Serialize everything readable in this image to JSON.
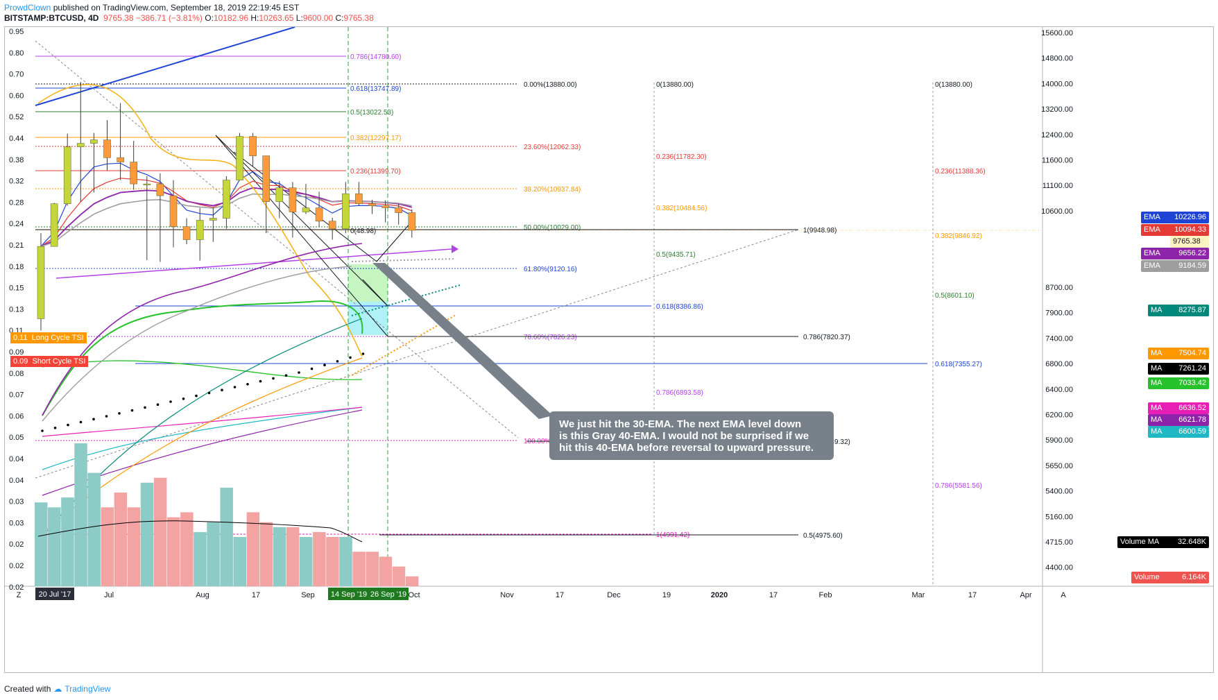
{
  "header": {
    "author": "ProwdClown",
    "published": "published on TradingView.com, September 18, 2019 22:19:45 EST"
  },
  "ohlc": {
    "symbol": "BITSTAMP:BTCUSD, 4D",
    "last": "9765.38",
    "change": "−386.71 (−3.81%)",
    "o_label": "O:",
    "o": "10182.96",
    "h_label": "H:",
    "h": "10263.65",
    "l_label": "L:",
    "l": "9600.00",
    "c_label": "C:",
    "c": "9765.38"
  },
  "footer": {
    "created": "Created with",
    "brand": "TradingView"
  },
  "callout": "We just hit the 30-EMA.  The next EMA level down\nis this Gray 40-EMA.  I would not be surprised if we\nhit this 40-EMA before reversal to upward pressure.",
  "colors": {
    "up": "#c5d63b",
    "up_strong": "#7cb342",
    "down": "#ff9a3c",
    "ema_blue": "#1e44d6",
    "ema_red": "#e53935",
    "ema_purple": "#8e24aa",
    "ema_gray": "#9e9e9e",
    "ma_teal": "#00897b",
    "ma_orange": "#ff9800",
    "ma_green": "#27c22b",
    "ma_magenta": "#e91eb7",
    "ma_cyan": "#1fb8c4",
    "vol_up": "#8ccbc6",
    "vol_down": "#f4a3a3"
  },
  "badges": {
    "ema1": {
      "label": "EMA",
      "value": "10226.96"
    },
    "ema2": {
      "label": "EMA",
      "value": "10094.33"
    },
    "price": {
      "value": "9765.38"
    },
    "ema3": {
      "label": "EMA",
      "value": "9656.22"
    },
    "ema4": {
      "label": "EMA",
      "value": "9184.59"
    },
    "ma1": {
      "label": "MA",
      "value": "8275.87"
    },
    "ma2": {
      "label": "MA",
      "value": "7504.74"
    },
    "ma3": {
      "label": "MA",
      "value": "7261.24"
    },
    "ma4": {
      "label": "MA",
      "value": "7033.42"
    },
    "ma5": {
      "label": "MA",
      "value": "6636.52"
    },
    "ma6": {
      "label": "MA",
      "value": "6621.78"
    },
    "ma7": {
      "label": "MA",
      "value": "6600.59"
    },
    "volma": {
      "label": "Volume MA",
      "value": "32.648K"
    },
    "vol": {
      "label": "Volume",
      "value": "6.164K"
    }
  },
  "tsi": {
    "long_value": "0.11",
    "long_label": "Long Cycle TSI",
    "short_value": "0.09",
    "short_label": "Short Cycle TSI"
  },
  "x_axis": {
    "z_label": "Z",
    "a_label": "A",
    "labels": [
      "Jul",
      "Aug",
      "17",
      "Sep",
      "Oct",
      "Nov",
      "17",
      "Dec",
      "19",
      "2020",
      "17",
      "Feb",
      "Mar",
      "17",
      "Apr"
    ],
    "highlight_start": "20 Jul '17",
    "highlight_a": "14 Sep '19",
    "highlight_b": "26 Sep '19"
  },
  "chart_data": {
    "type": "candlestick",
    "symbol": "BITSTAMP:BTCUSD",
    "interval": "4D",
    "y_axis_right": {
      "scale": "log",
      "ticks": [
        "15600.00",
        "14800.00",
        "14000.00",
        "13200.00",
        "12400.00",
        "11600.00",
        "11100.00",
        "10600.00",
        "9765.38",
        "9184.59",
        "8700.00",
        "7900.00",
        "7400.00",
        "6800.00",
        "6400.00",
        "6200.00",
        "5900.00",
        "5650.00",
        "5400.00",
        "5160.00",
        "4715.00",
        "4400.00"
      ]
    },
    "y_axis_left": {
      "ticks": [
        "0.95",
        "0.80",
        "0.70",
        "0.60",
        "0.52",
        "0.44",
        "0.38",
        "0.32",
        "0.28",
        "0.24",
        "0.21",
        "0.18",
        "0.15",
        "0.13",
        "0.11",
        "0.09",
        "0.08",
        "0.07",
        "0.06",
        "0.05",
        "0.04",
        "0.04",
        "0.03",
        "0.03",
        "0.02",
        "0.02",
        "0.02"
      ]
    },
    "candles": [
      {
        "o": 7920,
        "h": 9700,
        "l": 7700,
        "c": 9400
      },
      {
        "o": 9400,
        "h": 10420,
        "l": 9400,
        "c": 10400
      },
      {
        "o": 10400,
        "h": 12280,
        "l": 10350,
        "c": 11900
      },
      {
        "o": 11900,
        "h": 13880,
        "l": 10450,
        "c": 12000
      },
      {
        "o": 12000,
        "h": 12300,
        "l": 10680,
        "c": 12100
      },
      {
        "o": 12100,
        "h": 12680,
        "l": 11250,
        "c": 11600
      },
      {
        "o": 11600,
        "h": 13200,
        "l": 11000,
        "c": 11480
      },
      {
        "o": 11480,
        "h": 12070,
        "l": 10750,
        "c": 10900
      },
      {
        "o": 10900,
        "h": 11100,
        "l": 9100,
        "c": 10900
      },
      {
        "o": 10900,
        "h": 11180,
        "l": 9060,
        "c": 10600
      },
      {
        "o": 10600,
        "h": 11000,
        "l": 9380,
        "c": 9850
      },
      {
        "o": 9850,
        "h": 10050,
        "l": 9450,
        "c": 9550
      },
      {
        "o": 9550,
        "h": 10300,
        "l": 9090,
        "c": 10000
      },
      {
        "o": 10000,
        "h": 10300,
        "l": 9500,
        "c": 10050
      },
      {
        "o": 10050,
        "h": 11100,
        "l": 9800,
        "c": 11000
      },
      {
        "o": 11000,
        "h": 12300,
        "l": 11000,
        "c": 12200
      },
      {
        "o": 12200,
        "h": 12300,
        "l": 11350,
        "c": 11650
      },
      {
        "o": 11650,
        "h": 11650,
        "l": 9700,
        "c": 10450
      },
      {
        "o": 10450,
        "h": 10970,
        "l": 10050,
        "c": 10800
      },
      {
        "o": 10800,
        "h": 10950,
        "l": 9600,
        "c": 10200
      },
      {
        "o": 10200,
        "h": 10900,
        "l": 10150,
        "c": 10300
      },
      {
        "o": 10300,
        "h": 10700,
        "l": 9850,
        "c": 9980
      },
      {
        "o": 9980,
        "h": 10060,
        "l": 9550,
        "c": 9800
      },
      {
        "o": 9800,
        "h": 10950,
        "l": 9700,
        "c": 10650
      },
      {
        "o": 10650,
        "h": 10950,
        "l": 10350,
        "c": 10400
      },
      {
        "o": 10400,
        "h": 10500,
        "l": 10150,
        "c": 10350
      },
      {
        "o": 10350,
        "h": 10480,
        "l": 9950,
        "c": 10300
      },
      {
        "o": 10300,
        "h": 10400,
        "l": 9900,
        "c": 10183
      },
      {
        "o": 10182.96,
        "h": 10263.65,
        "l": 9600.0,
        "c": 9765.38
      }
    ],
    "volume": [
      32,
      31,
      33,
      44,
      38,
      31,
      34,
      31,
      36,
      37,
      29,
      30,
      26,
      28,
      35,
      25,
      30,
      28,
      27,
      27,
      25,
      26,
      25,
      25,
      22,
      22,
      21,
      19,
      17
    ],
    "fib_levels": [
      {
        "label": "0.786(14780.60)"
      },
      {
        "label": "0.618(13747.89)"
      },
      {
        "label": "0.5(13022.53)"
      },
      {
        "label": "0.382(12297.17)"
      },
      {
        "label": "0.236(11399.70)"
      },
      {
        "label": "0.00%(13880.00)"
      },
      {
        "label": "23.60%(12062.33)"
      },
      {
        "label": "38.20%(10937.84)"
      },
      {
        "label": "50.00%(10029.00)"
      },
      {
        "label": "61.80%(9120.16)"
      },
      {
        "label": "78.60%(7826.23)"
      },
      {
        "label": "100.00%(6178.00)"
      },
      {
        "label": "0(13880.00)"
      },
      {
        "label": "0.236(11782.30)"
      },
      {
        "label": "0.382(10484.56)"
      },
      {
        "label": "0.5(9435.71)"
      },
      {
        "label": "0.618(8386.86)"
      },
      {
        "label": "0.786(6893.58)"
      },
      {
        "label": "1(4991.42)"
      },
      {
        "label": "1(9948.98)"
      },
      {
        "label": "0(48.98)"
      },
      {
        "label": "0.786(7820.37)"
      },
      {
        "label": "0.618(6149.32)"
      },
      {
        "label": "0.5(4975.60)"
      },
      {
        "label": "0(13880.00)"
      },
      {
        "label": "0.236(11388.36)"
      },
      {
        "label": "0.382(9846.92)"
      },
      {
        "label": "0.5(8601.10)"
      },
      {
        "label": "0.618(7355.27)"
      },
      {
        "label": "0.786(5581.56)"
      }
    ]
  }
}
